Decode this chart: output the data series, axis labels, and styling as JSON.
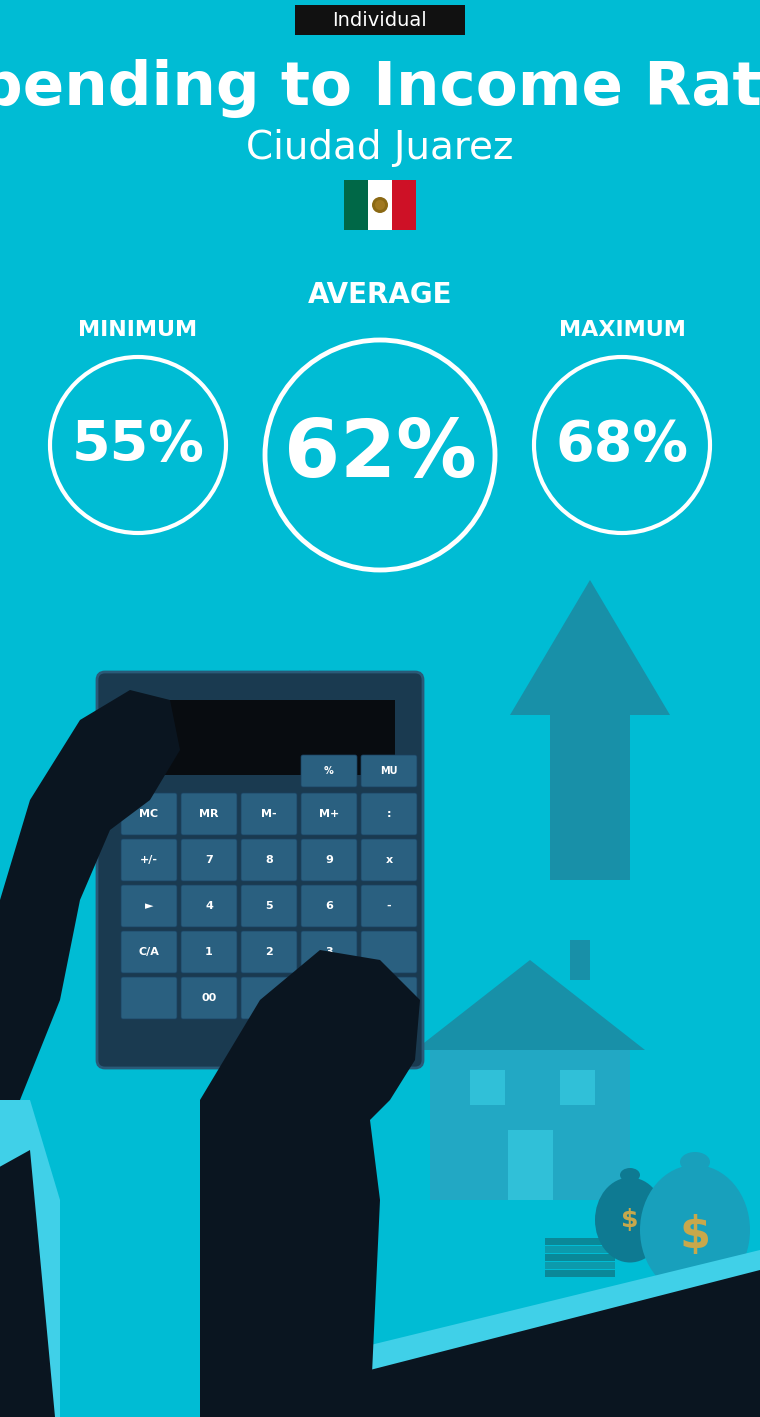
{
  "bg_color": "#00BCD4",
  "tag_bg": "#111111",
  "tag_text": "Individual",
  "tag_text_color": "#FFFFFF",
  "title": "Spending to Income Ratio",
  "subtitle": "Ciudad Juarez",
  "title_color": "#FFFFFF",
  "subtitle_color": "#FFFFFF",
  "label_avg": "AVERAGE",
  "label_min": "MINIMUM",
  "label_max": "MAXIMUM",
  "val_avg": "62%",
  "val_min": "55%",
  "val_max": "68%",
  "circle_color": "#FFFFFF",
  "text_color": "#FFFFFF",
  "illus_color1": "#22A8C4",
  "illus_color2": "#1890A8",
  "illus_color3": "#0E7A92",
  "calc_body_color": "#1A3A50",
  "calc_screen_color": "#080C10",
  "calc_btn_color": "#2A6080",
  "hand_color": "#0A1520",
  "cuff_color": "#40D0E8",
  "money_bag_color": "#18A0BC",
  "money_dollar_color": "#C8A84B",
  "flag_green": "#006847",
  "flag_white": "#FFFFFF",
  "flag_red": "#CE1126"
}
